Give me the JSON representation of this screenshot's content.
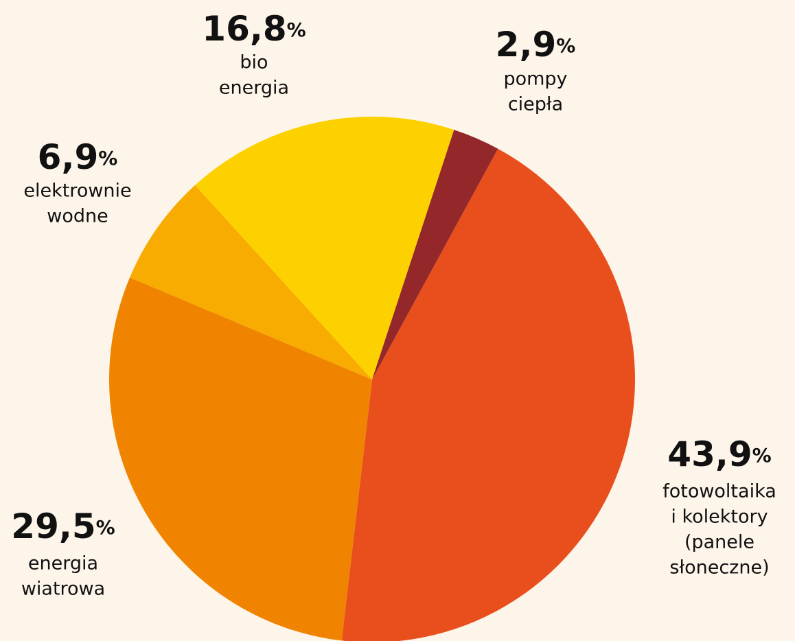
{
  "chart_data": {
    "type": "pie",
    "categories": [
      "fotowoltaika\ni kolektory\n(panele\nsłoneczne)",
      "energia\nwiatrowa",
      "elektrownie\nwodne",
      "bio\nenergia",
      "pompy\nciepła"
    ],
    "values": [
      43.9,
      29.5,
      6.9,
      16.8,
      2.9
    ],
    "value_labels": [
      "43,9%",
      "29,5%",
      "6,9%",
      "16,8%",
      "2,9%"
    ],
    "colors": [
      "#e94f1d",
      "#f08400",
      "#f8ab00",
      "#fdd100",
      "#93272a"
    ]
  }
}
